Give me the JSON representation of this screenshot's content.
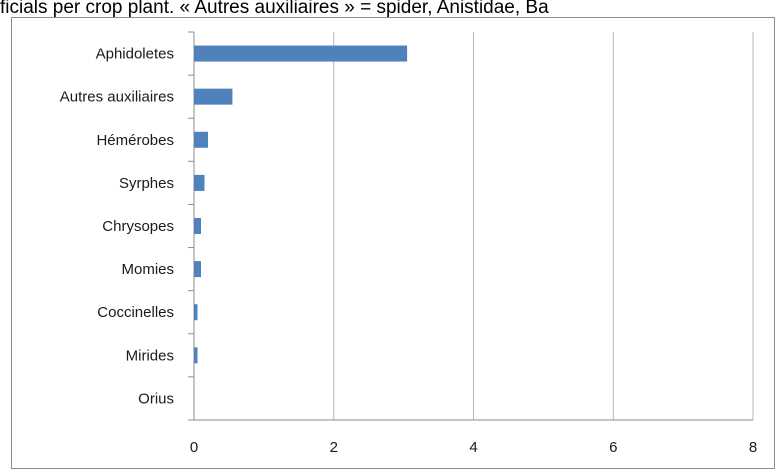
{
  "caption": "ficials per crop plant. « Autres auxiliaires » = spider, Anistidae, Ba",
  "chart_data": {
    "type": "bar",
    "orientation": "horizontal",
    "categories": [
      "Aphidoletes",
      "Autres auxiliaires",
      "Hémérobes",
      "Syrphes",
      "Chrysopes",
      "Momies",
      "Coccinelles",
      "Mirides",
      "Orius"
    ],
    "values": [
      3.05,
      0.55,
      0.2,
      0.15,
      0.1,
      0.1,
      0.05,
      0.05,
      0.0
    ],
    "xlim": [
      0,
      8
    ],
    "xticks": [
      "0",
      "2",
      "4",
      "6",
      "8"
    ],
    "grid": "vertical",
    "bar_color": "#4f81bd",
    "grid_color": "#b7b7b7",
    "axis_color": "#8c8c8c"
  }
}
